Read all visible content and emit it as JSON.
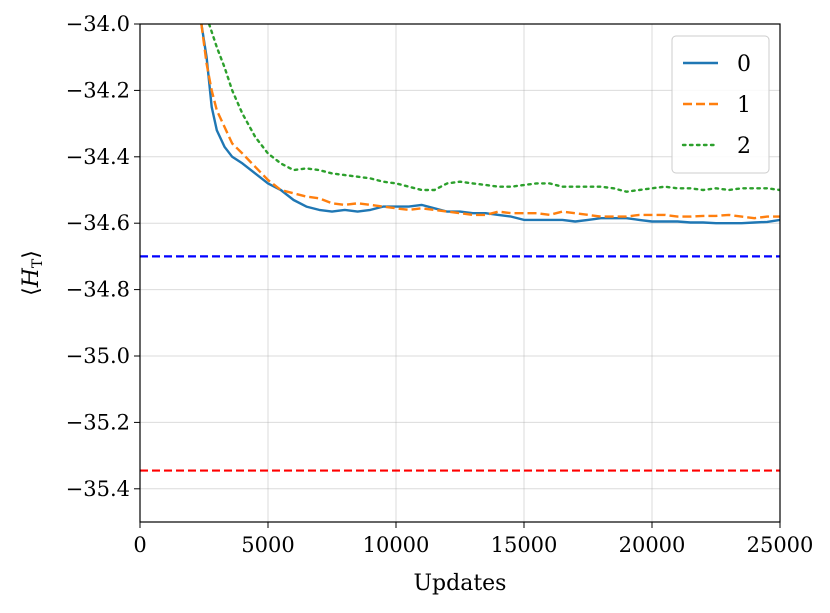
{
  "chart_data": {
    "type": "line",
    "title": "",
    "xlabel": "Updates",
    "ylabel": "⟨H_T⟩",
    "ylabel_main": "H",
    "ylabel_sub": "T",
    "ylabel_open": "⟨",
    "ylabel_close": "⟩",
    "xlim": [
      0,
      25000
    ],
    "ylim": [
      -35.5,
      -34.0
    ],
    "xticks": [
      0,
      5000,
      10000,
      15000,
      20000,
      25000
    ],
    "yticks": [
      -35.4,
      -35.2,
      -35.0,
      -34.8,
      -34.6,
      -34.4,
      -34.2,
      -34.0
    ],
    "xtick_labels": [
      "0",
      "5000",
      "10000",
      "15000",
      "20000",
      "25000"
    ],
    "ytick_labels": [
      "−35.4",
      "−35.2",
      "−35.0",
      "−34.8",
      "−34.6",
      "−34.4",
      "−34.2",
      "−34.0"
    ],
    "grid": true,
    "legend": "top-right",
    "series": [
      {
        "name": "0",
        "color": "#1f77b4",
        "style": "solid",
        "x": [
          2400,
          2600,
          2800,
          3000,
          3300,
          3600,
          4000,
          4500,
          5000,
          5500,
          6000,
          6500,
          7000,
          7500,
          8000,
          8500,
          9000,
          9500,
          10000,
          10500,
          11000,
          11500,
          12000,
          12500,
          13000,
          13500,
          14000,
          14500,
          15000,
          15500,
          16000,
          16500,
          17000,
          17500,
          18000,
          18500,
          19000,
          19500,
          20000,
          20500,
          21000,
          21500,
          22000,
          22500,
          23000,
          23500,
          24000,
          24500,
          25000
        ],
        "y": [
          -34.0,
          -34.1,
          -34.25,
          -34.32,
          -34.37,
          -34.4,
          -34.42,
          -34.45,
          -34.48,
          -34.5,
          -34.53,
          -34.55,
          -34.56,
          -34.565,
          -34.56,
          -34.565,
          -34.56,
          -34.55,
          -34.55,
          -34.55,
          -34.545,
          -34.555,
          -34.565,
          -34.565,
          -34.57,
          -34.57,
          -34.575,
          -34.58,
          -34.59,
          -34.59,
          -34.59,
          -34.59,
          -34.595,
          -34.59,
          -34.585,
          -34.585,
          -34.585,
          -34.59,
          -34.595,
          -34.595,
          -34.595,
          -34.598,
          -34.598,
          -34.6,
          -34.6,
          -34.6,
          -34.598,
          -34.596,
          -34.59
        ]
      },
      {
        "name": "1",
        "color": "#ff7f0e",
        "style": "dashed",
        "x": [
          2400,
          2600,
          2800,
          3000,
          3300,
          3600,
          4000,
          4500,
          5000,
          5500,
          6000,
          6500,
          7000,
          7500,
          8000,
          8500,
          9000,
          9500,
          10000,
          10500,
          11000,
          11500,
          12000,
          12500,
          13000,
          13500,
          14000,
          14500,
          15000,
          15500,
          16000,
          16500,
          17000,
          17500,
          18000,
          18500,
          19000,
          19500,
          20000,
          20500,
          21000,
          21500,
          22000,
          22500,
          23000,
          23500,
          24000,
          24500,
          25000
        ],
        "y": [
          -34.0,
          -34.12,
          -34.2,
          -34.26,
          -34.31,
          -34.36,
          -34.39,
          -34.43,
          -34.47,
          -34.5,
          -34.51,
          -34.52,
          -34.525,
          -34.54,
          -34.545,
          -34.54,
          -34.545,
          -34.55,
          -34.555,
          -34.56,
          -34.555,
          -34.56,
          -34.565,
          -34.57,
          -34.575,
          -34.575,
          -34.565,
          -34.57,
          -34.57,
          -34.57,
          -34.575,
          -34.565,
          -34.57,
          -34.575,
          -34.58,
          -34.58,
          -34.58,
          -34.575,
          -34.575,
          -34.575,
          -34.58,
          -34.58,
          -34.578,
          -34.578,
          -34.575,
          -34.58,
          -34.585,
          -34.58,
          -34.58
        ]
      },
      {
        "name": "2",
        "color": "#2ca02c",
        "style": "dotted",
        "x": [
          2700,
          3000,
          3300,
          3600,
          4000,
          4500,
          5000,
          5500,
          6000,
          6500,
          7000,
          7500,
          8000,
          8500,
          9000,
          9500,
          10000,
          10500,
          11000,
          11500,
          12000,
          12500,
          13000,
          13500,
          14000,
          14500,
          15000,
          15500,
          16000,
          16500,
          17000,
          17500,
          18000,
          18500,
          19000,
          19500,
          20000,
          20500,
          21000,
          21500,
          22000,
          22500,
          23000,
          23500,
          24000,
          24500,
          25000
        ],
        "y": [
          -34.0,
          -34.07,
          -34.13,
          -34.2,
          -34.27,
          -34.34,
          -34.39,
          -34.42,
          -34.44,
          -34.435,
          -34.44,
          -34.45,
          -34.455,
          -34.46,
          -34.465,
          -34.475,
          -34.48,
          -34.49,
          -34.5,
          -34.5,
          -34.48,
          -34.475,
          -34.48,
          -34.485,
          -34.49,
          -34.49,
          -34.485,
          -34.48,
          -34.48,
          -34.49,
          -34.49,
          -34.49,
          -34.49,
          -34.495,
          -34.505,
          -34.5,
          -34.495,
          -34.49,
          -34.495,
          -34.495,
          -34.5,
          -34.495,
          -34.5,
          -34.495,
          -34.495,
          -34.495,
          -34.5
        ]
      }
    ],
    "reference_lines": [
      {
        "y": -34.7,
        "color": "#0000ff",
        "style": "dashed"
      },
      {
        "y": -35.345,
        "color": "#ff0000",
        "style": "dashed"
      }
    ]
  }
}
